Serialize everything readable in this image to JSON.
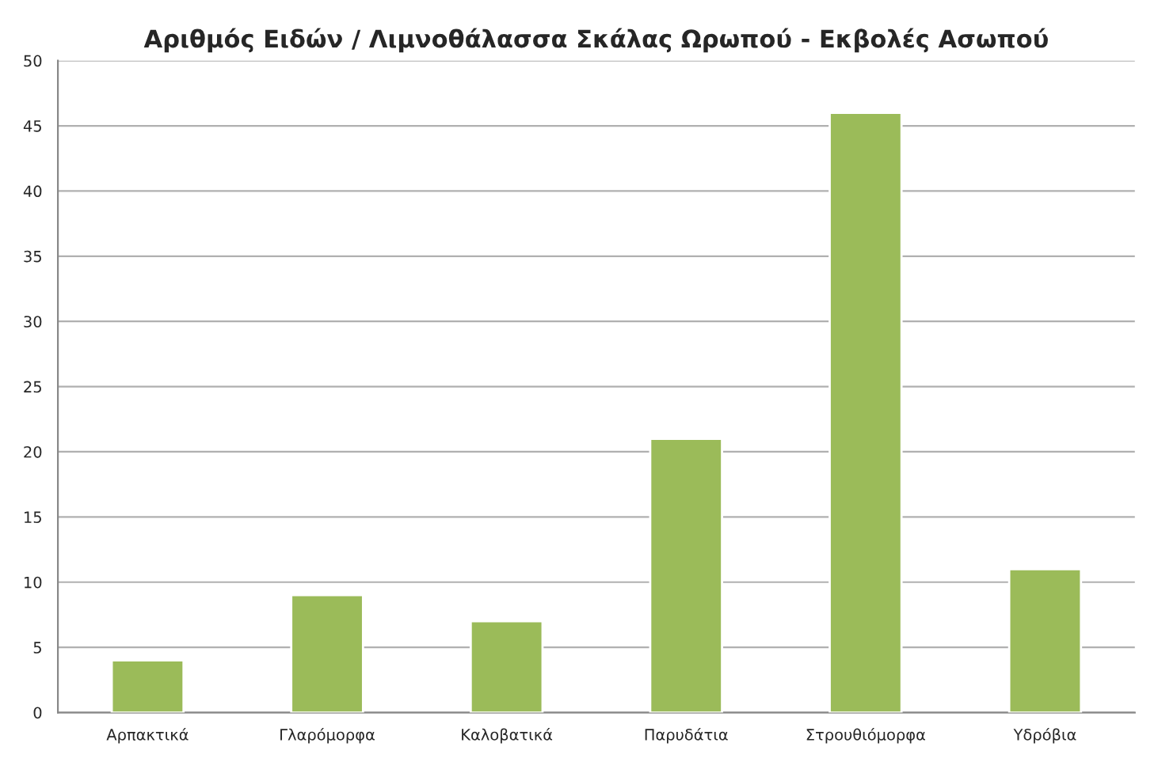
{
  "chart_data": {
    "type": "bar",
    "title": "Αριθμός Ειδών / Λιμνοθάλασσα Σκάλας Ωρωπού - Εκβολές Ασωπού",
    "categories": [
      "Αρπακτικά",
      "Γλαρόμορφα",
      "Καλοβατικά",
      "Παρυδάτια",
      "Στρουθιόμορφα",
      "Υδρόβια"
    ],
    "values": [
      4,
      9,
      7,
      21,
      46,
      11
    ],
    "color": "#9bbb59",
    "ylim": [
      0,
      50
    ],
    "yticks": [
      0,
      5,
      10,
      15,
      20,
      25,
      30,
      35,
      40,
      45,
      50
    ],
    "grid": "y"
  }
}
